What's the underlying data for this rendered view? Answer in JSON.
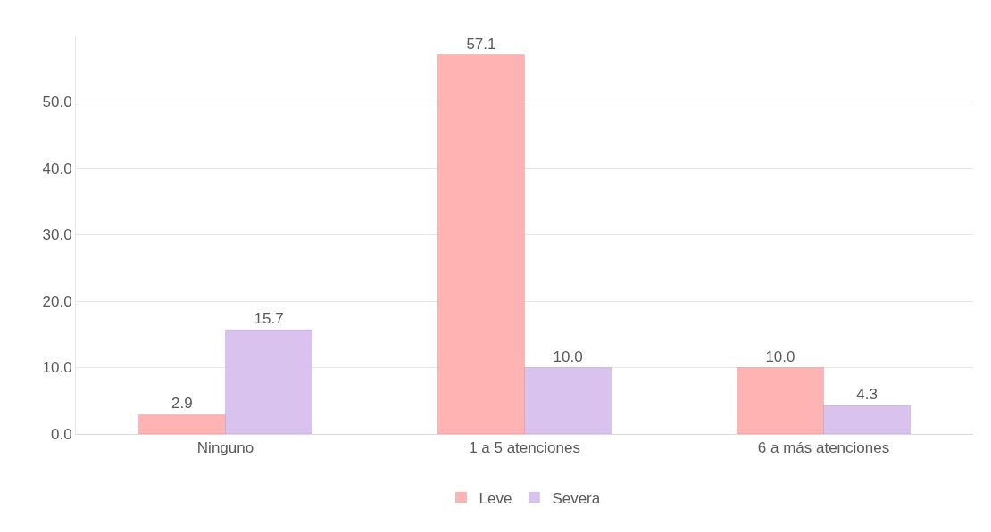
{
  "chart_data": {
    "type": "bar",
    "categories": [
      "Ninguno",
      "1 a 5 atenciones",
      "6 a más atenciones"
    ],
    "series": [
      {
        "name": "Leve",
        "color": "#ffb3b3",
        "values": [
          2.9,
          57.1,
          10.0
        ],
        "value_labels": [
          "2.9",
          "57.1",
          "10.0"
        ]
      },
      {
        "name": "Severa",
        "color": "#d9c3ee",
        "values": [
          15.7,
          10.0,
          4.3
        ],
        "value_labels": [
          "15.7",
          "10.0",
          "4.3"
        ]
      }
    ],
    "ylim": [
      0,
      60
    ],
    "yticks": [
      {
        "value": 0,
        "label": "0.0"
      },
      {
        "value": 10,
        "label": "10.0"
      },
      {
        "value": 20,
        "label": "20.0"
      },
      {
        "value": 30,
        "label": "30.0"
      },
      {
        "value": 40,
        "label": "40.0"
      },
      {
        "value": 50,
        "label": "50.0"
      }
    ],
    "grid": "y",
    "legend": "bottom"
  }
}
